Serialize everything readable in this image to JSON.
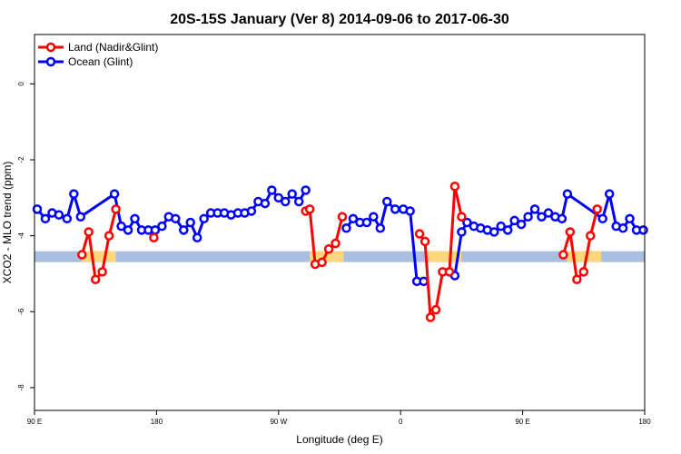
{
  "chart_data": {
    "type": "line",
    "title": "20S-15S January (Ver 8)   2014-09-06 to 2017-06-30",
    "xlabel": "Longitude (deg E)",
    "ylabel": "XCO2 - MLO trend (ppm)",
    "xlim": [
      90,
      540
    ],
    "ylim": [
      -8.6,
      1.3
    ],
    "grid": false,
    "legend_position": "top-left",
    "x_ticks": [
      {
        "value": 90,
        "label": "90 E"
      },
      {
        "value": 180,
        "label": "180"
      },
      {
        "value": 270,
        "label": "90 W"
      },
      {
        "value": 360,
        "label": "0"
      },
      {
        "value": 450,
        "label": "90 E"
      },
      {
        "value": 540,
        "label": "180"
      }
    ],
    "y_ticks": [
      {
        "value": 0,
        "label": "0"
      },
      {
        "value": -2,
        "label": "-2"
      },
      {
        "value": -4,
        "label": "-4"
      },
      {
        "value": -6,
        "label": "-6"
      },
      {
        "value": -8,
        "label": "-8"
      }
    ],
    "series": [
      {
        "name": "Land (Nadir&Glint)",
        "color": "#ff0000",
        "segments": [
          {
            "x": [
              125,
              130,
              135,
              140,
              145,
              150
            ],
            "y": [
              -4.5,
              -3.9,
              -5.15,
              -4.95,
              -4.0,
              -3.3
            ]
          },
          {
            "x": [
              178
            ],
            "y": [
              -4.05
            ]
          },
          {
            "x": [
              290,
              293,
              297,
              302,
              307,
              312,
              317
            ],
            "y": [
              -3.35,
              -3.3,
              -4.75,
              -4.7,
              -4.35,
              -4.2,
              -3.5
            ]
          },
          {
            "x": [
              374,
              378,
              382,
              386,
              391,
              396,
              400,
              405
            ],
            "y": [
              -3.95,
              -4.15,
              -6.15,
              -5.95,
              -4.95,
              -4.95,
              -2.7,
              -3.5
            ]
          },
          {
            "x": [
              480,
              485,
              490,
              495,
              500,
              505
            ],
            "y": [
              -4.5,
              -3.9,
              -5.15,
              -4.95,
              -4.0,
              -3.3
            ]
          }
        ]
      },
      {
        "name": "Ocean (Glint)",
        "color": "#0000ff",
        "segments": [
          {
            "x": [
              92,
              98,
              103,
              108,
              114,
              119,
              124,
              149,
              154,
              159,
              164,
              169,
              174,
              179,
              184,
              189,
              194,
              200,
              205,
              210,
              215,
              220,
              225,
              230,
              235,
              240,
              245,
              250,
              255,
              260,
              265,
              270,
              275,
              280,
              285,
              290
            ],
            "y": [
              -3.3,
              -3.55,
              -3.4,
              -3.45,
              -3.55,
              -2.9,
              -3.5,
              -2.9,
              -3.75,
              -3.85,
              -3.55,
              -3.85,
              -3.85,
              -3.85,
              -3.75,
              -3.5,
              -3.55,
              -3.85,
              -3.65,
              -4.05,
              -3.55,
              -3.4,
              -3.4,
              -3.4,
              -3.45,
              -3.4,
              -3.4,
              -3.35,
              -3.1,
              -3.15,
              -2.8,
              -3.0,
              -3.1,
              -2.9,
              -3.1,
              -2.8
            ]
          },
          {
            "x": [
              320,
              325,
              330,
              335,
              340,
              345,
              350,
              356,
              362,
              367,
              372,
              377
            ],
            "y": [
              -3.8,
              -3.55,
              -3.65,
              -3.65,
              -3.5,
              -3.8,
              -3.1,
              -3.3,
              -3.3,
              -3.35,
              -5.2,
              -5.2
            ]
          },
          {
            "x": [
              400,
              405,
              409,
              414,
              419,
              424,
              429,
              434,
              439,
              444,
              449,
              454,
              459,
              464,
              469,
              474,
              479,
              483,
              509,
              514,
              519,
              524,
              529,
              534,
              539
            ],
            "y": [
              -5.05,
              -3.9,
              -3.65,
              -3.75,
              -3.8,
              -3.85,
              -3.9,
              -3.75,
              -3.85,
              -3.6,
              -3.7,
              -3.5,
              -3.3,
              -3.5,
              -3.4,
              -3.5,
              -3.55,
              -2.9,
              -3.55,
              -2.9,
              -3.75,
              -3.8,
              -3.55,
              -3.85,
              -3.85
            ]
          }
        ]
      }
    ],
    "band_y": -4.55,
    "band_ocean_color": "#a8bfe0",
    "band_land_color": "#ffd77a",
    "band_land_ranges": [
      [
        125,
        150
      ],
      [
        293,
        318
      ],
      [
        380,
        405
      ],
      [
        483,
        508
      ]
    ]
  }
}
